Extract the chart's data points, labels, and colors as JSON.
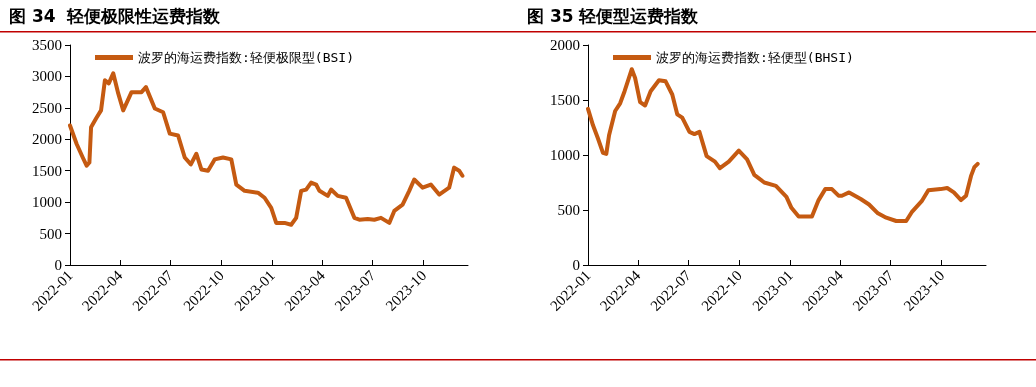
{
  "chart_data": [
    {
      "type": "line",
      "title": "图 34  轻便极限性运费指数",
      "legend": "top left",
      "grid": false,
      "marker": "none",
      "line_style": "solid",
      "xlim": [
        "2022-01-01",
        "2023-12-20"
      ],
      "xticks": [
        "2022-01",
        "2022-04",
        "2022-07",
        "2022-10",
        "2023-01",
        "2023-04",
        "2023-07",
        "2023-10"
      ],
      "ylim": [
        0,
        3500
      ],
      "yticks": [
        0,
        500,
        1000,
        1500,
        2000,
        2500,
        3000,
        3500
      ],
      "series": [
        {
          "name": "波罗的海运费指数:轻便极限型(BSI)",
          "color": "#c55a11",
          "x": [
            "2022-01-01",
            "2022-01-13",
            "2022-01-24",
            "2022-01-31",
            "2022-02-05",
            "2022-02-08",
            "2022-02-17",
            "2022-02-26",
            "2022-03-05",
            "2022-03-12",
            "2022-03-20",
            "2022-03-29",
            "2022-04-07",
            "2022-04-22",
            "2022-05-10",
            "2022-05-18",
            "2022-06-03",
            "2022-06-18",
            "2022-06-30",
            "2022-07-15",
            "2022-07-27",
            "2022-08-07",
            "2022-08-17",
            "2022-08-26",
            "2022-09-07",
            "2022-09-19",
            "2022-10-04",
            "2022-10-19",
            "2022-10-28",
            "2022-11-12",
            "2022-12-06",
            "2022-12-18",
            "2022-12-30",
            "2023-01-08",
            "2023-01-23",
            "2023-02-04",
            "2023-02-13",
            "2023-02-22",
            "2023-03-03",
            "2023-03-12",
            "2023-03-21",
            "2023-03-27",
            "2023-04-11",
            "2023-04-17",
            "2023-04-29",
            "2023-05-14",
            "2023-05-29",
            "2023-06-07",
            "2023-06-22",
            "2023-07-04",
            "2023-07-16",
            "2023-07-31",
            "2023-08-09",
            "2023-08-24",
            "2023-09-05",
            "2023-09-14",
            "2023-09-29",
            "2023-10-14",
            "2023-10-29",
            "2023-11-16",
            "2023-11-25",
            "2023-12-04",
            "2023-12-10"
          ],
          "values": [
            2220,
            1925,
            1710,
            1580,
            1630,
            2190,
            2330,
            2460,
            2940,
            2890,
            3050,
            2730,
            2460,
            2750,
            2750,
            2830,
            2490,
            2430,
            2090,
            2060,
            1710,
            1600,
            1770,
            1520,
            1500,
            1680,
            1710,
            1680,
            1280,
            1180,
            1150,
            1070,
            910,
            670,
            670,
            640,
            750,
            1180,
            1200,
            1310,
            1280,
            1180,
            1100,
            1200,
            1100,
            1070,
            750,
            720,
            730,
            720,
            750,
            670,
            860,
            960,
            1180,
            1360,
            1230,
            1280,
            1120,
            1230,
            1550,
            1500,
            1420
          ]
        }
      ]
    },
    {
      "type": "line",
      "title": "图 35 轻便型运费指数",
      "legend": "top left",
      "grid": false,
      "marker": "none",
      "line_style": "solid",
      "xlim": [
        "2022-01-01",
        "2023-12-20"
      ],
      "xticks": [
        "2022-01",
        "2022-04",
        "2022-07",
        "2022-10",
        "2023-01",
        "2023-04",
        "2023-07",
        "2023-10"
      ],
      "ylim": [
        0,
        2000
      ],
      "yticks": [
        0,
        500,
        1000,
        1500,
        2000
      ],
      "series": [
        {
          "name": "波罗的海运费指数:轻便型(BHSI)",
          "color": "#c55a11",
          "x": [
            "2022-01-01",
            "2022-01-10",
            "2022-01-19",
            "2022-01-28",
            "2022-02-03",
            "2022-02-08",
            "2022-02-19",
            "2022-02-28",
            "2022-03-08",
            "2022-03-21",
            "2022-03-27",
            "2022-04-05",
            "2022-04-14",
            "2022-04-24",
            "2022-05-09",
            "2022-05-21",
            "2022-06-02",
            "2022-06-11",
            "2022-06-20",
            "2022-07-03",
            "2022-07-12",
            "2022-07-21",
            "2022-08-03",
            "2022-08-18",
            "2022-08-27",
            "2022-09-12",
            "2022-09-30",
            "2022-10-15",
            "2022-10-28",
            "2022-11-15",
            "2022-12-06",
            "2022-12-25",
            "2023-01-03",
            "2023-01-16",
            "2023-02-09",
            "2023-02-21",
            "2023-03-05",
            "2023-03-17",
            "2023-03-29",
            "2023-04-04",
            "2023-04-17",
            "2023-05-08",
            "2023-05-23",
            "2023-06-08",
            "2023-06-23",
            "2023-07-11",
            "2023-07-29",
            "2023-08-08",
            "2023-08-26",
            "2023-09-07",
            "2023-09-29",
            "2023-10-11",
            "2023-10-23",
            "2023-11-05",
            "2023-11-14",
            "2023-11-23",
            "2023-11-29",
            "2023-12-05"
          ],
          "values": [
            1420,
            1270,
            1150,
            1020,
            1010,
            1180,
            1400,
            1470,
            1580,
            1780,
            1700,
            1480,
            1450,
            1580,
            1680,
            1670,
            1550,
            1370,
            1340,
            1210,
            1190,
            1210,
            990,
            940,
            880,
            940,
            1040,
            960,
            820,
            750,
            720,
            620,
            520,
            440,
            440,
            590,
            690,
            690,
            630,
            630,
            660,
            600,
            550,
            470,
            430,
            400,
            400,
            480,
            580,
            680,
            690,
            700,
            660,
            590,
            630,
            810,
            890,
            920
          ]
        }
      ]
    }
  ]
}
